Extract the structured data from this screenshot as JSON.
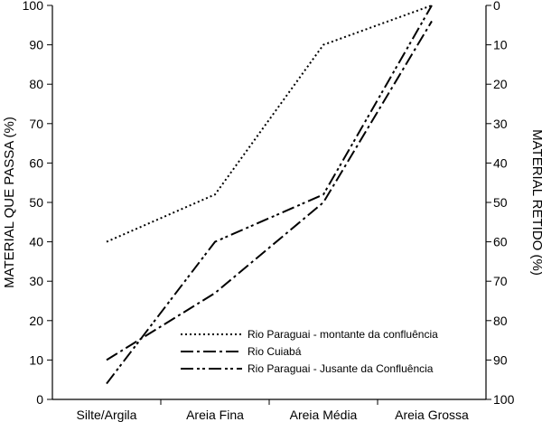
{
  "chart_data": {
    "type": "line",
    "title": "",
    "categories": [
      "Silte/Argila",
      "Areia Fina",
      "Areia Média",
      "Areia Grossa"
    ],
    "ylabel_left": "MATERIAL QUE PASSA (%)",
    "ylabel_right": "MATERIAL RETIDO (%)",
    "ylim_left": [
      0,
      100
    ],
    "ylim_right": [
      100,
      0
    ],
    "yticks_left": [
      "0",
      "10",
      "20",
      "30",
      "40",
      "50",
      "60",
      "70",
      "80",
      "90",
      "100"
    ],
    "yticks_right": [
      "100",
      "90",
      "80",
      "70",
      "60",
      "50",
      "40",
      "30",
      "20",
      "10",
      "0"
    ],
    "grid": false,
    "legend_position": "bottom-right",
    "series": [
      {
        "name": "Rio Paraguai - montante da confluência",
        "style": "dotted",
        "values": [
          40,
          52,
          90,
          100
        ]
      },
      {
        "name": "Rio Cuiabá",
        "style": "dash-dot",
        "values": [
          10,
          27,
          50,
          96
        ]
      },
      {
        "name": "Rio Paraguai - Jusante da Confluência",
        "style": "dash-dot-dot",
        "values": [
          4,
          40,
          52,
          100
        ]
      }
    ]
  }
}
